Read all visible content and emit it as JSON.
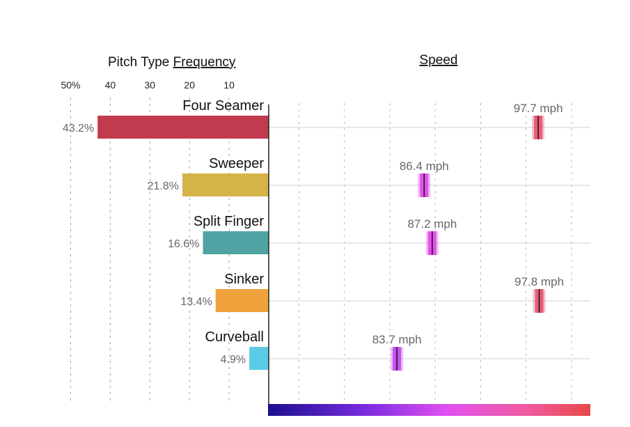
{
  "chart_data": {
    "type": "bar",
    "frequency_panel": {
      "title_prefix": "Pitch Type ",
      "title_underlined": "Frequency",
      "tick_labels": [
        "50%",
        "40",
        "30",
        "20",
        "10"
      ],
      "tick_values": [
        50,
        40,
        30,
        20,
        10
      ],
      "xlim": [
        0,
        50
      ],
      "grid": "vertical dashed"
    },
    "speed_panel": {
      "title": "Speed",
      "unit": "mph",
      "xlim": [
        71,
        101
      ],
      "grid": "vertical dashed",
      "color_scale": [
        "#1a0f8f",
        "#5a1fd0",
        "#c040f0",
        "#f050e0",
        "#f05080",
        "#e84848"
      ]
    },
    "categories": [
      "Four Seamer",
      "Sweeper",
      "Split Finger",
      "Sinker",
      "Curveball"
    ],
    "series": [
      {
        "values": [
          43.2,
          21.8,
          16.6,
          13.4,
          4.9
        ],
        "labels": [
          "43.2%",
          "21.8%",
          "16.6%",
          "13.4%",
          "4.9%"
        ],
        "colors": [
          "#c23a4e",
          "#d6b44a",
          "#4fa3a3",
          "#f0a23c",
          "#5ccbe8"
        ]
      },
      {
        "values": [
          97.7,
          86.4,
          87.2,
          97.8,
          83.7
        ],
        "labels": [
          "97.7 mph",
          "86.4 mph",
          "87.2 mph",
          "97.8 mph",
          "83.7 mph"
        ],
        "colors": [
          "#e84a6a",
          "#e040e8",
          "#e040e8",
          "#e84a6a",
          "#c040f0"
        ]
      }
    ]
  }
}
